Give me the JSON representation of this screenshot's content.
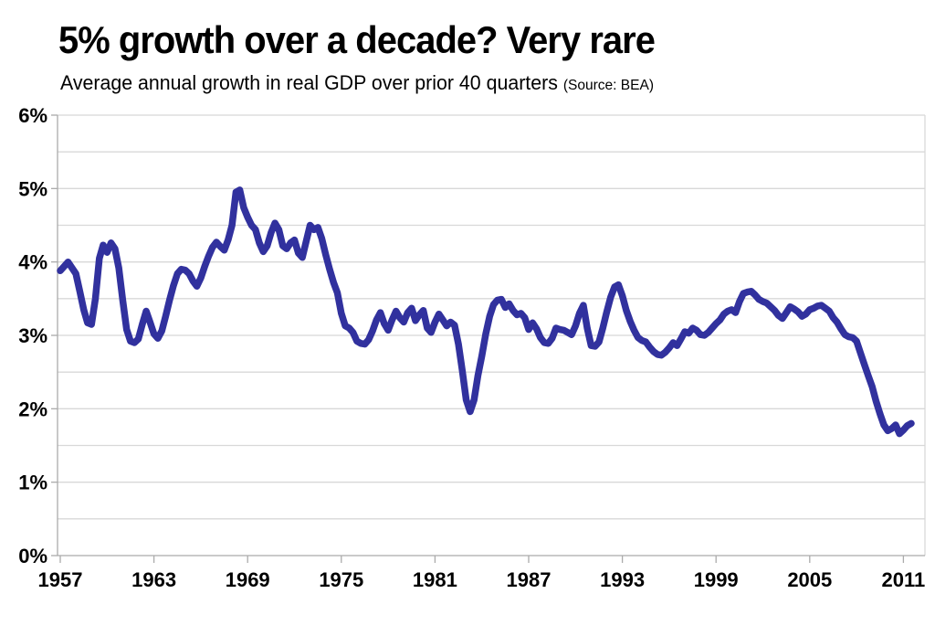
{
  "header": {
    "title": "5% growth over a decade? Very rare",
    "subtitle": "Average annual growth in real GDP over prior 40 quarters",
    "source_note": "(Source: BEA)"
  },
  "chart_data": {
    "type": "line",
    "title": "5% growth over a decade? Very rare",
    "subtitle": "Average annual growth in real GDP over prior 40 quarters",
    "source": "BEA",
    "xlabel": "",
    "ylabel": "",
    "xlim": [
      1957,
      2011.5
    ],
    "ylim": [
      0,
      6
    ],
    "x_ticks": [
      1957,
      1963,
      1969,
      1975,
      1981,
      1987,
      1993,
      1999,
      2005,
      2011
    ],
    "y_ticks": [
      {
        "value": 0,
        "label": "0%"
      },
      {
        "value": 1,
        "label": "1%"
      },
      {
        "value": 2,
        "label": "2%"
      },
      {
        "value": 3,
        "label": "3%"
      },
      {
        "value": 4,
        "label": "4%"
      },
      {
        "value": 5,
        "label": "5%"
      },
      {
        "value": 6,
        "label": "6%"
      }
    ],
    "grid": {
      "y_step": 0.5,
      "on": true,
      "color": "#D8D8D8"
    },
    "legend": "none",
    "line_color": "#31319E",
    "axis_color": "#ABABAB",
    "series": [
      {
        "name": "Average annual growth in real GDP over prior 40 quarters",
        "x_start": 1957,
        "x_step": 0.25,
        "values": [
          3.88,
          3.94,
          4.0,
          3.92,
          3.84,
          3.6,
          3.35,
          3.17,
          3.15,
          3.5,
          4.05,
          4.23,
          4.13,
          4.26,
          4.18,
          3.92,
          3.48,
          3.08,
          2.92,
          2.9,
          2.95,
          3.15,
          3.33,
          3.18,
          3.02,
          2.96,
          3.06,
          3.26,
          3.48,
          3.68,
          3.84,
          3.9,
          3.89,
          3.84,
          3.74,
          3.67,
          3.78,
          3.94,
          4.08,
          4.2,
          4.27,
          4.21,
          4.16,
          4.3,
          4.5,
          4.95,
          4.98,
          4.74,
          4.61,
          4.5,
          4.44,
          4.26,
          4.14,
          4.22,
          4.4,
          4.53,
          4.44,
          4.22,
          4.18,
          4.26,
          4.3,
          4.12,
          4.06,
          4.28,
          4.5,
          4.44,
          4.47,
          4.32,
          4.1,
          3.9,
          3.72,
          3.58,
          3.3,
          3.13,
          3.1,
          3.04,
          2.92,
          2.89,
          2.88,
          2.94,
          3.06,
          3.21,
          3.31,
          3.16,
          3.07,
          3.21,
          3.33,
          3.24,
          3.18,
          3.31,
          3.37,
          3.2,
          3.28,
          3.34,
          3.1,
          3.04,
          3.18,
          3.29,
          3.21,
          3.13,
          3.18,
          3.14,
          2.88,
          2.52,
          2.12,
          1.96,
          2.12,
          2.45,
          2.72,
          3.02,
          3.26,
          3.42,
          3.48,
          3.49,
          3.38,
          3.43,
          3.34,
          3.28,
          3.3,
          3.24,
          3.08,
          3.17,
          3.09,
          2.97,
          2.9,
          2.89,
          2.96,
          3.1,
          3.08,
          3.07,
          3.04,
          3.01,
          3.13,
          3.3,
          3.41,
          3.1,
          2.86,
          2.85,
          2.91,
          3.1,
          3.32,
          3.52,
          3.66,
          3.69,
          3.54,
          3.34,
          3.19,
          3.07,
          2.97,
          2.93,
          2.91,
          2.84,
          2.78,
          2.74,
          2.73,
          2.77,
          2.83,
          2.9,
          2.86,
          2.95,
          3.05,
          3.03,
          3.1,
          3.07,
          3.01,
          3.0,
          3.04,
          3.1,
          3.16,
          3.21,
          3.29,
          3.33,
          3.35,
          3.31,
          3.46,
          3.57,
          3.59,
          3.6,
          3.55,
          3.49,
          3.46,
          3.44,
          3.39,
          3.34,
          3.27,
          3.23,
          3.31,
          3.39,
          3.36,
          3.32,
          3.26,
          3.29,
          3.35,
          3.37,
          3.4,
          3.41,
          3.37,
          3.33,
          3.24,
          3.18,
          3.09,
          3.01,
          2.98,
          2.97,
          2.92,
          2.76,
          2.6,
          2.45,
          2.3,
          2.1,
          1.93,
          1.78,
          1.7,
          1.73,
          1.78,
          1.66,
          1.71,
          1.77,
          1.8
        ]
      }
    ]
  }
}
